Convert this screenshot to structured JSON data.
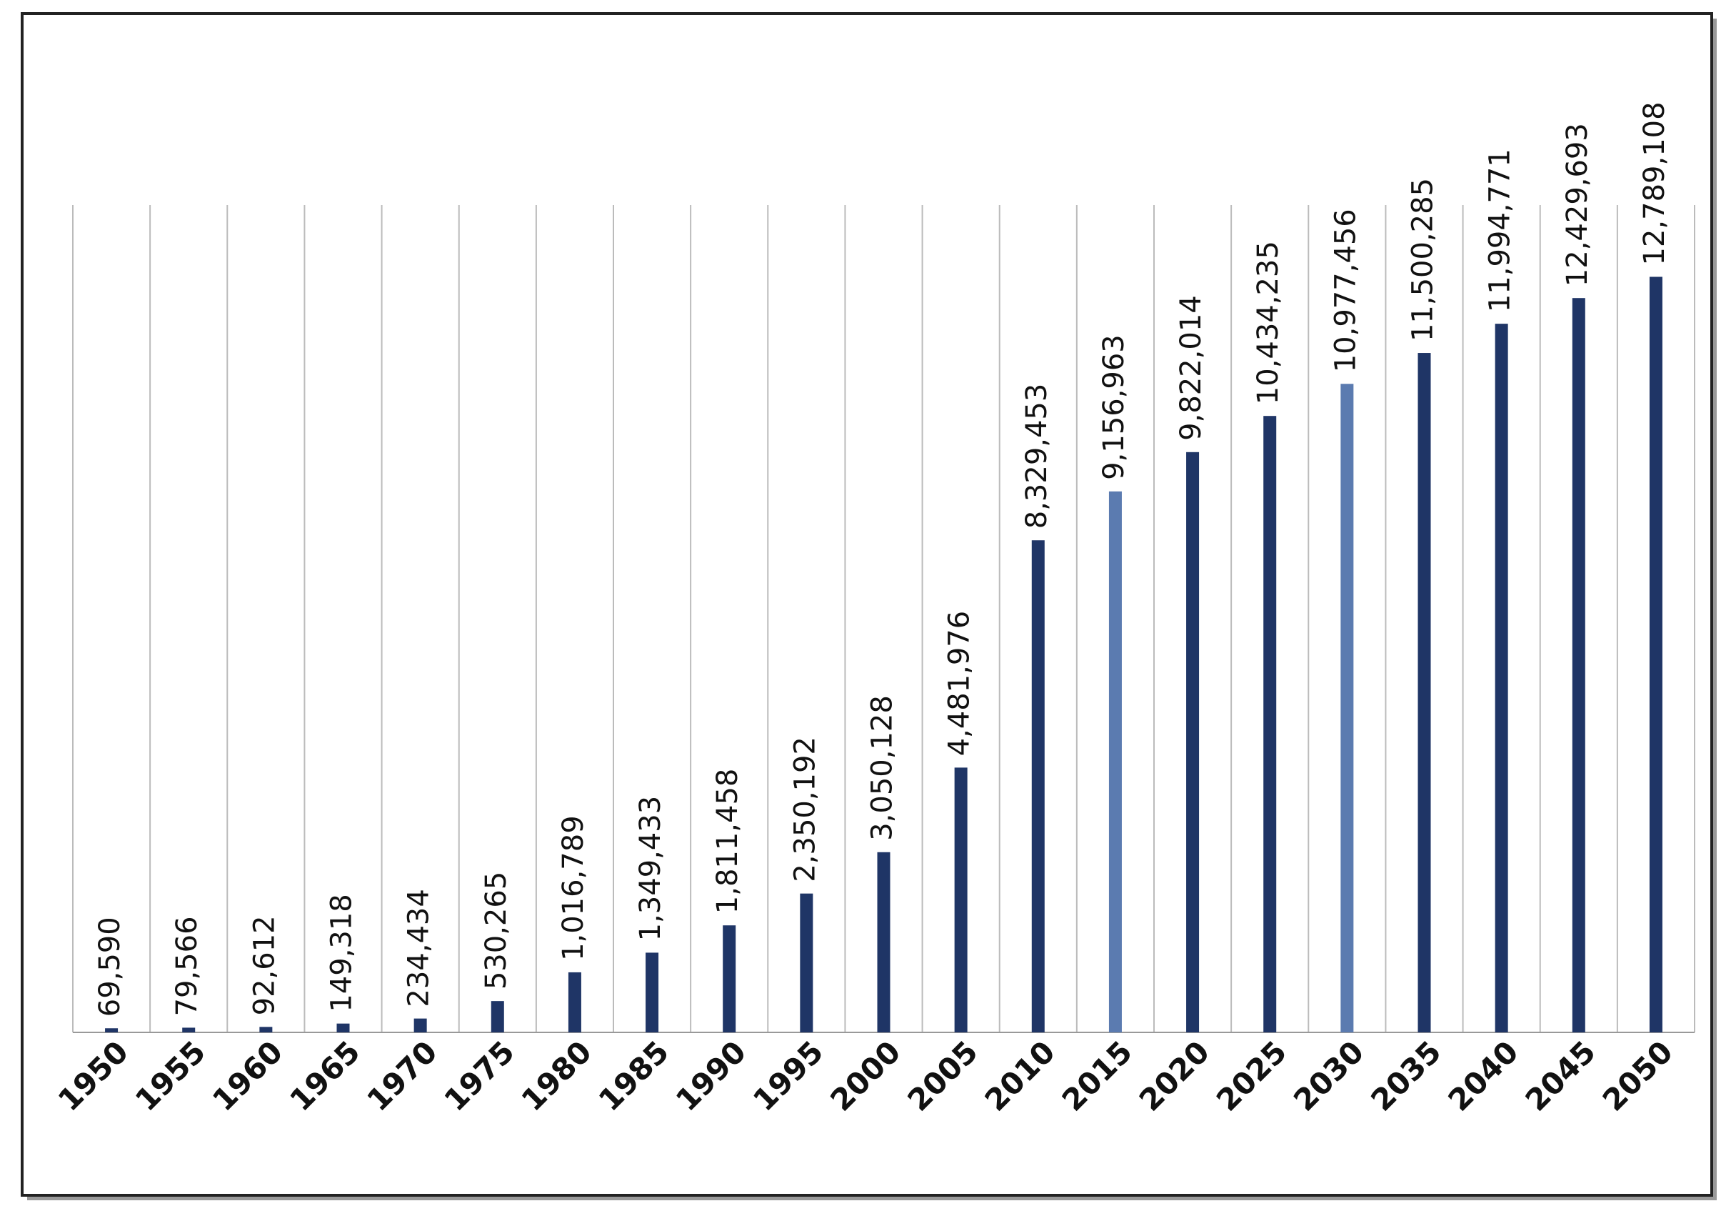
{
  "chart_data": {
    "type": "bar",
    "categories": [
      "1950",
      "1955",
      "1960",
      "1965",
      "1970",
      "1975",
      "1980",
      "1985",
      "1990",
      "1995",
      "2000",
      "2005",
      "2010",
      "2015",
      "2020",
      "2025",
      "2030",
      "2035",
      "2040",
      "2045",
      "2050"
    ],
    "values": [
      69590,
      79566,
      92612,
      149318,
      234434,
      530265,
      1016789,
      1349433,
      1811458,
      2350192,
      3050128,
      4481976,
      8329453,
      9156963,
      9822014,
      10434235,
      10977456,
      11500285,
      11994771,
      12429693,
      12789108
    ],
    "value_labels": [
      "69,590",
      "79,566",
      "92,612",
      "149,318",
      "234,434",
      "530,265",
      "1,016,789",
      "1,349,433",
      "1,811,458",
      "2,350,192",
      "3,050,128",
      "4,481,976",
      "8,329,453",
      "9,156,963",
      "9,822,014",
      "10,434,235",
      "10,977,456",
      "11,500,285",
      "11,994,771",
      "12,429,693",
      "12,789,108"
    ],
    "colors": [
      "#1f3566",
      "#1f3566",
      "#1f3566",
      "#1f3566",
      "#1f3566",
      "#1f3566",
      "#1f3566",
      "#1f3566",
      "#1f3566",
      "#1f3566",
      "#1f3566",
      "#1f3566",
      "#1f3566",
      "#5b7bb0",
      "#1f3566",
      "#1f3566",
      "#5b7bb0",
      "#1f3566",
      "#1f3566",
      "#1f3566",
      "#1f3566"
    ]
  }
}
